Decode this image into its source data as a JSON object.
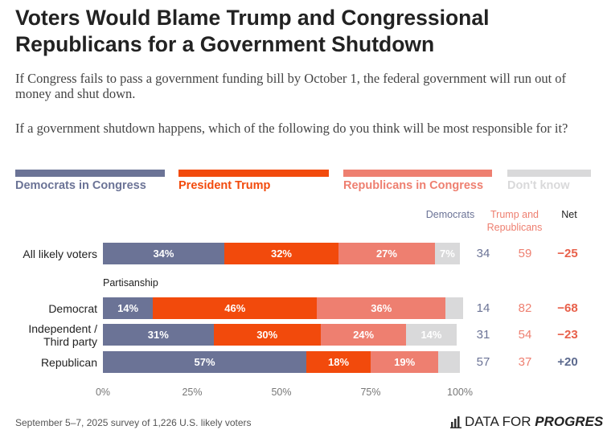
{
  "title": "Voters Would Blame Trump and Congressional Republicans for a Government Shutdown",
  "intro": [
    "If Congress fails to pass a government funding bill by October 1, the federal government will run out of money and shut down.",
    "If a government shutdown happens, which of the following do you think will be most responsible for it?"
  ],
  "chart_data": {
    "type": "stacked-bar",
    "orientation": "horizontal",
    "categories": [
      "All likely voters",
      "Democrat",
      "Independent / Third party",
      "Republican"
    ],
    "group_label": "Partisanship",
    "series": [
      {
        "name": "Democrats in Congress",
        "color": "#6b7396",
        "values": [
          34,
          14,
          31,
          57
        ],
        "value_labels": [
          "34%",
          "14%",
          "31%",
          "57%"
        ]
      },
      {
        "name": "President Trump",
        "color": "#f24a0c",
        "values": [
          32,
          46,
          30,
          18
        ],
        "value_labels": [
          "32%",
          "46%",
          "30%",
          "18%"
        ]
      },
      {
        "name": "Republicans in Congress",
        "color": "#ee7f70",
        "values": [
          27,
          36,
          24,
          19
        ],
        "value_labels": [
          "27%",
          "36%",
          "24%",
          "19%"
        ]
      },
      {
        "name": "Don't know",
        "color": "#d9d9da",
        "values": [
          7,
          5,
          14,
          6
        ],
        "value_labels": [
          "7%",
          null,
          "14%",
          null
        ]
      }
    ],
    "xlim": [
      0,
      100
    ],
    "xticks": [
      {
        "value": 0,
        "label": "0%"
      },
      {
        "value": 25,
        "label": "25%"
      },
      {
        "value": 50,
        "label": "50%"
      },
      {
        "value": 75,
        "label": "75%"
      },
      {
        "value": 100,
        "label": "100%"
      }
    ]
  },
  "summary": {
    "headers": [
      "Democrats",
      "Trump and Republicans",
      "Net"
    ],
    "democrats": [
      34,
      14,
      31,
      57
    ],
    "trump_and_republicans": [
      59,
      82,
      54,
      37
    ],
    "net": {
      "values": [
        -25,
        -68,
        -23,
        20
      ],
      "value_labels": [
        "−25",
        "−68",
        "−23",
        "+20"
      ]
    }
  },
  "footer": {
    "note": "September 5–7, 2025 survey of 1,226 U.S. likely voters",
    "logo": [
      "DATA FOR",
      "PROGRESS"
    ]
  }
}
